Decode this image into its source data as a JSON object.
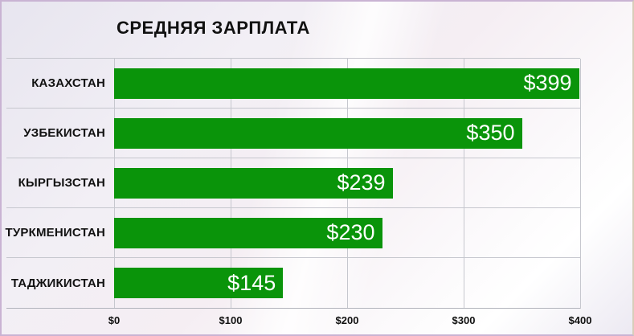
{
  "title": "СРЕДНЯЯ ЗАРПЛАТА",
  "colors": {
    "bar_fill": "#0a940a",
    "bar_value_text": "#ffffff",
    "gridline": "#c6c7ce",
    "axis_line": "#b2b4bc",
    "text": "#111111",
    "slide_border": "#c9b3d3"
  },
  "chart_data": {
    "type": "bar",
    "orientation": "horizontal",
    "title": "СРЕДНЯЯ ЗАРПЛАТА",
    "categories": [
      "КАЗАХСТАН",
      "УЗБЕКИСТАН",
      "КЫРГЫЗСТАН",
      "ТУРКМЕНИСТАН",
      "ТАДЖИКИСТАН"
    ],
    "values": [
      399,
      350,
      239,
      230,
      145
    ],
    "value_labels": [
      "$399",
      "$350",
      "$239",
      "$230",
      "$145"
    ],
    "x_ticks": [
      "$0",
      "$100",
      "$200",
      "$300",
      "$400"
    ],
    "x_tick_values": [
      0,
      100,
      200,
      300,
      400
    ],
    "xlim": [
      0,
      400
    ],
    "xlabel": "",
    "ylabel": "",
    "grid": true,
    "legend": "none",
    "unit": "USD"
  }
}
